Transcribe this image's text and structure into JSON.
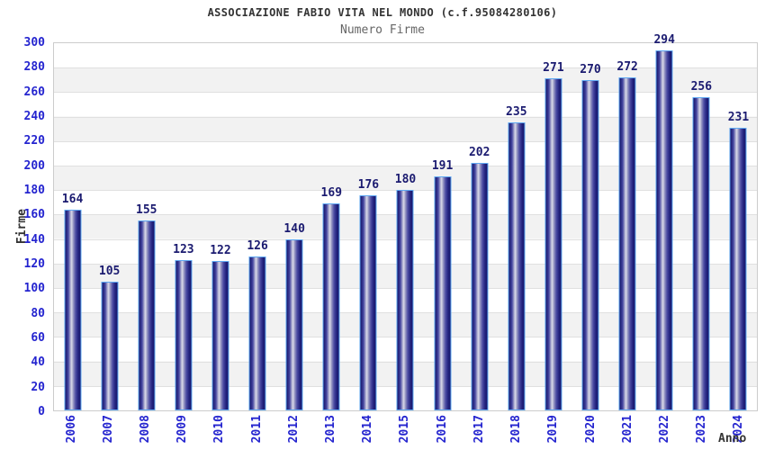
{
  "chart_data": {
    "type": "bar",
    "title": "ASSOCIAZIONE FABIO VITA NEL MONDO (c.f.95084280106)",
    "subtitle": "Numero Firme",
    "xlabel": "Anno",
    "ylabel": "Firme",
    "categories": [
      "2006",
      "2007",
      "2008",
      "2009",
      "2010",
      "2011",
      "2012",
      "2013",
      "2014",
      "2015",
      "2016",
      "2017",
      "2018",
      "2019",
      "2020",
      "2021",
      "2022",
      "2023",
      "2024"
    ],
    "values": [
      164,
      105,
      155,
      123,
      122,
      126,
      140,
      169,
      176,
      180,
      191,
      202,
      235,
      271,
      270,
      272,
      294,
      256,
      231
    ],
    "ylim": [
      0,
      300
    ],
    "ytick_step": 20,
    "grid": true,
    "legend": "none",
    "colors": {
      "bar_dark": "#15156a",
      "bar_light": "#d9d9e9",
      "bar_border": "#5ea8f2",
      "tick_label": "#2424cf",
      "value_label": "#1b1b70",
      "axis_title": "#333333",
      "band_gray": "#f2f2f2",
      "gridline": "#e0e0e0",
      "title_text": "#333333",
      "subtitle_text": "#666666"
    }
  }
}
